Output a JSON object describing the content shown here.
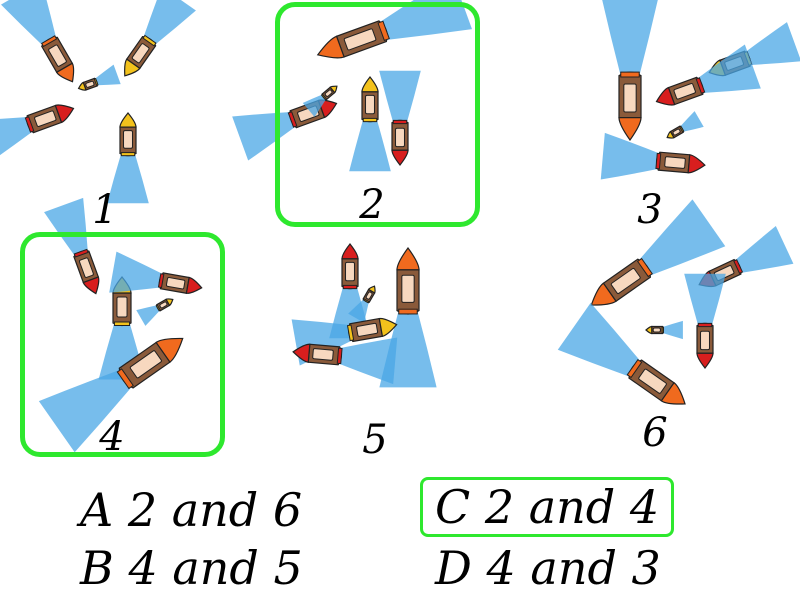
{
  "panels": [
    {
      "number": "1",
      "selected": false
    },
    {
      "number": "2",
      "selected": true
    },
    {
      "number": "3",
      "selected": false
    },
    {
      "number": "4",
      "selected": true
    },
    {
      "number": "5",
      "selected": false
    },
    {
      "number": "6",
      "selected": false
    }
  ],
  "answers": [
    {
      "letter": "A",
      "text": "2 and 6",
      "selected": false
    },
    {
      "letter": "B",
      "text": "4 and 5",
      "selected": false
    },
    {
      "letter": "C",
      "text": "2 and 4",
      "selected": true
    },
    {
      "letter": "D",
      "text": "4 and 3",
      "selected": false
    }
  ],
  "colors": {
    "highlight": "#2ee82e",
    "hull": "#8a5a3a",
    "cabin": "#f7d8bf",
    "water": "#4aa7e6",
    "bow_red": "#d81e1e",
    "bow_orange": "#f06a1e",
    "bow_yellow": "#f3c21c"
  }
}
